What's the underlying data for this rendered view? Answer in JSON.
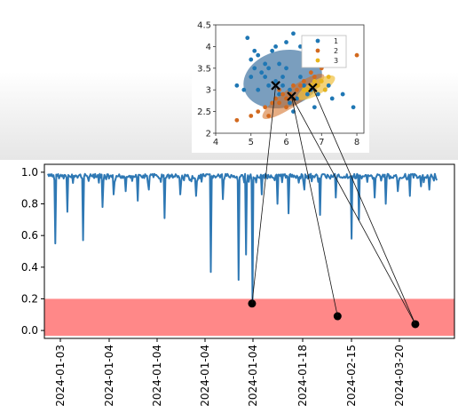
{
  "chart_data": [
    {
      "type": "line",
      "ylim": [
        -0.05,
        1.05
      ],
      "y_ticks": [
        "1.0",
        "0.8",
        "0.6",
        "0.4",
        "0.2",
        "0.0"
      ],
      "y_tick_values": [
        1.0,
        0.8,
        0.6,
        0.4,
        0.2,
        0.0
      ],
      "x_tick_labels": [
        "2024-01-03",
        "2024-01-04",
        "2024-01-04",
        "2024-01-04",
        "2024-01-04",
        "2024-01-18",
        "2024-02-15",
        "2024-03-20"
      ],
      "highlight_band": {
        "y_from": 0.0,
        "y_to": 0.2,
        "color": "#ff7b7b"
      },
      "series_color": "#2e78b4",
      "baseline": 0.99,
      "dips": [
        [
          0.02,
          0.55
        ],
        [
          0.05,
          0.75
        ],
        [
          0.09,
          0.57
        ],
        [
          0.14,
          0.78
        ],
        [
          0.17,
          0.86
        ],
        [
          0.2,
          0.88
        ],
        [
          0.23,
          0.82
        ],
        [
          0.26,
          0.89
        ],
        [
          0.3,
          0.71
        ],
        [
          0.34,
          0.86
        ],
        [
          0.38,
          0.85
        ],
        [
          0.42,
          0.37
        ],
        [
          0.45,
          0.83
        ],
        [
          0.49,
          0.32
        ],
        [
          0.51,
          0.48
        ],
        [
          0.525,
          0.17
        ],
        [
          0.55,
          0.86
        ],
        [
          0.59,
          0.8
        ],
        [
          0.62,
          0.74
        ],
        [
          0.66,
          0.89
        ],
        [
          0.7,
          0.73
        ],
        [
          0.74,
          0.84
        ],
        [
          0.78,
          0.58
        ],
        [
          0.8,
          0.7
        ],
        [
          0.84,
          0.84
        ],
        [
          0.87,
          0.8
        ],
        [
          0.9,
          0.88
        ],
        [
          0.93,
          0.85
        ],
        [
          0.96,
          0.91
        ],
        [
          0.98,
          0.89
        ]
      ],
      "anomaly_points": [
        {
          "x": 0.525,
          "y": 0.17,
          "color": "#000000"
        },
        {
          "x": 0.745,
          "y": 0.09,
          "color": "#000000"
        },
        {
          "x": 0.945,
          "y": 0.04,
          "color": "#000000"
        }
      ]
    },
    {
      "type": "scatter",
      "xlim": [
        4,
        8.2
      ],
      "ylim": [
        2,
        4.5
      ],
      "x_ticks": [
        "4",
        "5",
        "6",
        "7",
        "8"
      ],
      "x_tick_values": [
        4,
        5,
        6,
        7,
        8
      ],
      "y_ticks": [
        "4.5",
        "4",
        "3.5",
        "3",
        "2.5",
        "2"
      ],
      "y_tick_values": [
        4.5,
        4,
        3.5,
        3,
        2.5,
        2
      ],
      "legend": {
        "placement": "top-right",
        "entries": [
          "1",
          "2",
          "3"
        ]
      },
      "series": [
        {
          "name": "1",
          "color": "#1f77b4",
          "points": [
            [
              4.9,
              4.2
            ],
            [
              5.0,
              3.7
            ],
            [
              5.1,
              3.5
            ],
            [
              5.2,
              3.8
            ],
            [
              5.3,
              3.4
            ],
            [
              5.4,
              3.6
            ],
            [
              5.5,
              3.5
            ],
            [
              5.6,
              3.9
            ],
            [
              5.7,
              3.2
            ],
            [
              5.8,
              3.6
            ],
            [
              5.9,
              3.3
            ],
            [
              6.0,
              4.1
            ],
            [
              6.2,
              4.3
            ],
            [
              6.4,
              4.0
            ],
            [
              5.2,
              3.0
            ],
            [
              5.5,
              3.1
            ],
            [
              5.8,
              2.9
            ],
            [
              6.1,
              3.0
            ],
            [
              6.3,
              2.8
            ],
            [
              6.5,
              3.1
            ],
            [
              6.7,
              3.0
            ],
            [
              6.9,
              2.9
            ],
            [
              7.1,
              3.0
            ],
            [
              7.3,
              2.8
            ],
            [
              7.6,
              2.9
            ],
            [
              7.9,
              2.6
            ],
            [
              5.0,
              3.3
            ],
            [
              5.1,
              3.9
            ],
            [
              5.4,
              3.3
            ],
            [
              6.0,
              3.5
            ],
            [
              6.4,
              3.3
            ],
            [
              4.6,
              3.1
            ],
            [
              4.8,
              3.0
            ],
            [
              5.7,
              4.0
            ],
            [
              6.6,
              2.9
            ],
            [
              7.2,
              3.1
            ],
            [
              6.2,
              2.5
            ],
            [
              6.8,
              2.6
            ],
            [
              5.9,
              3.1
            ],
            [
              6.1,
              2.7
            ]
          ]
        },
        {
          "name": "2",
          "color": "#d2691e",
          "points": [
            [
              4.6,
              2.3
            ],
            [
              5.0,
              2.4
            ],
            [
              5.2,
              2.5
            ],
            [
              5.4,
              2.6
            ],
            [
              5.5,
              2.4
            ],
            [
              5.6,
              2.7
            ],
            [
              5.7,
              2.8
            ],
            [
              5.8,
              2.7
            ],
            [
              5.9,
              2.9
            ],
            [
              6.0,
              2.8
            ],
            [
              6.1,
              2.9
            ],
            [
              6.2,
              2.8
            ],
            [
              6.3,
              3.0
            ],
            [
              6.4,
              3.1
            ],
            [
              6.5,
              3.2
            ],
            [
              6.6,
              3.0
            ],
            [
              6.8,
              3.3
            ],
            [
              7.0,
              3.5
            ],
            [
              7.5,
              3.8
            ],
            [
              8.0,
              3.8
            ],
            [
              6.2,
              3.1
            ],
            [
              5.8,
              3.0
            ],
            [
              6.0,
              2.6
            ],
            [
              6.7,
              3.4
            ]
          ]
        },
        {
          "name": "3",
          "color": "#e8b51c",
          "points": [
            [
              6.7,
              3.1
            ],
            [
              6.8,
              3.2
            ],
            [
              6.9,
              3.1
            ],
            [
              7.0,
              3.2
            ],
            [
              7.2,
              3.3
            ],
            [
              6.6,
              3.0
            ],
            [
              6.5,
              3.0
            ],
            [
              7.1,
              3.0
            ]
          ]
        }
      ],
      "clusters": [
        {
          "center": [
            5.7,
            3.1
          ],
          "color": "#000000",
          "fill": "#4e7ea8"
        },
        {
          "center": [
            6.15,
            2.85
          ],
          "color": "#000000",
          "fill": "#d2691e"
        },
        {
          "center": [
            6.75,
            3.05
          ],
          "color": "#000000",
          "fill": "#f0c040"
        }
      ]
    }
  ]
}
